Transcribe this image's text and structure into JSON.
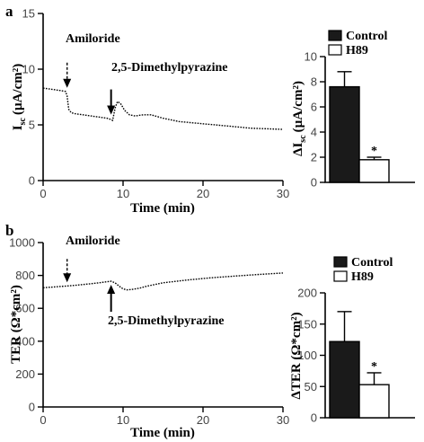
{
  "panels": {
    "a": {
      "letter": "a"
    },
    "b": {
      "letter": "b"
    }
  },
  "chart_data": [
    {
      "id": "a-trace",
      "type": "line",
      "ylabel_main": "I",
      "ylabel_sub": "sc",
      "ylabel_unit": "(µA/cm²)",
      "xlabel": "Time (min)",
      "xlim": [
        0,
        30
      ],
      "ylim": [
        0,
        15
      ],
      "xticks": [
        "0",
        "10",
        "20",
        "30"
      ],
      "yticks": [
        "0",
        "5",
        "10",
        "15"
      ],
      "x": [
        0,
        1,
        2,
        2.8,
        3.0,
        3.2,
        3.5,
        4,
        5,
        6,
        7,
        8,
        8.4,
        8.7,
        9.0,
        9.3,
        9.7,
        10.2,
        10.8,
        11.5,
        12.5,
        13.5,
        15,
        17,
        20,
        23,
        26,
        30
      ],
      "y": [
        8.3,
        8.2,
        8.1,
        8.0,
        7.6,
        6.4,
        6.1,
        6.0,
        5.9,
        5.8,
        5.7,
        5.6,
        5.5,
        5.4,
        6.5,
        7.1,
        6.9,
        6.3,
        5.9,
        5.8,
        5.9,
        5.9,
        5.6,
        5.3,
        5.1,
        4.9,
        4.7,
        4.6
      ],
      "annotations": [
        {
          "text": "Amiloride",
          "x": 3,
          "y": 8.0,
          "style": "dashed"
        },
        {
          "text": "2,5-Dimethylpyrazine",
          "x": 8.5,
          "y": 5.6,
          "style": "solid"
        }
      ]
    },
    {
      "id": "a-bar",
      "type": "bar",
      "ylabel_prefix": "ΔI",
      "ylabel_sub": "sc",
      "ylabel_unit": "(µA/cm²)",
      "ylim": [
        0,
        10
      ],
      "yticks": [
        "0",
        "2",
        "4",
        "6",
        "8",
        "10"
      ],
      "categories": [
        "Control",
        "H89"
      ],
      "values": [
        7.6,
        1.8
      ],
      "errors": [
        1.2,
        0.2
      ],
      "significance": [
        "",
        "*"
      ],
      "legend": [
        "Control",
        "H89"
      ],
      "colors": [
        "#1a1a1a",
        "#ffffff"
      ]
    },
    {
      "id": "b-trace",
      "type": "line",
      "ylabel": "TER (Ω*cm²)",
      "xlabel": "Time (min)",
      "xlim": [
        0,
        30
      ],
      "ylim": [
        0,
        1000
      ],
      "xticks": [
        "0",
        "10",
        "20",
        "30"
      ],
      "yticks": [
        "0",
        "200",
        "400",
        "600",
        "800",
        "1000"
      ],
      "x": [
        0,
        2,
        3,
        4,
        5,
        6,
        7,
        8,
        8.5,
        9,
        9.5,
        10,
        10.5,
        11,
        12,
        13,
        15,
        18,
        21,
        24,
        27,
        30
      ],
      "y": [
        725,
        732,
        736,
        740,
        745,
        750,
        755,
        762,
        765,
        755,
        735,
        718,
        712,
        714,
        722,
        735,
        755,
        772,
        786,
        796,
        806,
        815
      ],
      "annotations": [
        {
          "text": "Amiloride",
          "x": 3,
          "y": 736,
          "style": "dashed"
        },
        {
          "text": "2,5-Dimethylpyrazine",
          "x": 8.5,
          "y": 765,
          "style": "solid"
        }
      ]
    },
    {
      "id": "b-bar",
      "type": "bar",
      "ylabel": "ΔTER (Ω*cm²)",
      "ylim": [
        0,
        200
      ],
      "yticks": [
        "0",
        "50",
        "100",
        "150",
        "200"
      ],
      "categories": [
        "Control",
        "H89"
      ],
      "values": [
        122,
        53
      ],
      "errors": [
        48,
        19
      ],
      "significance": [
        "",
        "*"
      ],
      "legend": [
        "Control",
        "H89"
      ],
      "colors": [
        "#1a1a1a",
        "#ffffff"
      ]
    }
  ]
}
